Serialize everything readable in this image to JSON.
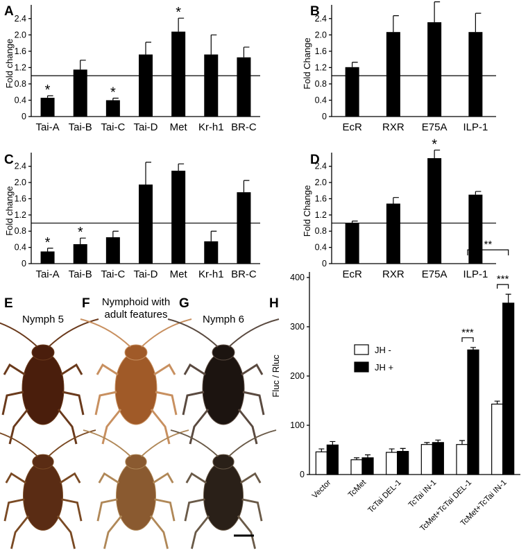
{
  "chart_data": [
    {
      "panel": "A",
      "type": "bar",
      "ylabel": "Fold change",
      "categories": [
        "Tai-A",
        "Tai-B",
        "Tai-C",
        "Tai-D",
        "Met",
        "Kr-h1",
        "BR-C"
      ],
      "values": [
        0.46,
        1.15,
        0.4,
        1.52,
        2.08,
        1.52,
        1.45
      ],
      "errors": [
        0.05,
        0.23,
        0.05,
        0.3,
        0.33,
        0.48,
        0.25
      ],
      "significance": [
        "*",
        "",
        "*",
        "",
        "*",
        "",
        ""
      ],
      "ylim": [
        0,
        2.6
      ],
      "yticks": [
        "0",
        "0.4",
        "0.8",
        "1.2",
        "1.6",
        "2.0",
        "2.4"
      ],
      "reference_line": 1.0
    },
    {
      "panel": "B",
      "type": "bar",
      "ylabel": "Fold Change",
      "categories": [
        "EcR",
        "RXR",
        "E75A",
        "ILP-1"
      ],
      "values": [
        1.21,
        2.07,
        2.31,
        2.07
      ],
      "errors": [
        0.12,
        0.4,
        0.5,
        0.46
      ],
      "significance": [
        "",
        "",
        "",
        ""
      ],
      "ylim": [
        0,
        2.6
      ],
      "yticks": [
        "0",
        "0.4",
        "0.8",
        "1.2",
        "1.6",
        "2.0",
        "2.4"
      ],
      "reference_line": 1.0
    },
    {
      "panel": "C",
      "type": "bar",
      "ylabel": "Fold change",
      "categories": [
        "Tai-A",
        "Tai-B",
        "Tai-C",
        "Tai-D",
        "Met",
        "Kr-h1",
        "BR-C"
      ],
      "values": [
        0.3,
        0.48,
        0.65,
        1.95,
        2.29,
        0.55,
        1.76
      ],
      "errors": [
        0.08,
        0.15,
        0.15,
        0.55,
        0.17,
        0.25,
        0.29
      ],
      "significance": [
        "*",
        "*",
        "",
        "",
        "",
        "",
        ""
      ],
      "ylim": [
        0,
        2.6
      ],
      "yticks": [
        "0",
        "0.4",
        "0.8",
        "1.2",
        "1.6",
        "2.0",
        "2.4"
      ],
      "reference_line": 1.0
    },
    {
      "panel": "D",
      "type": "bar",
      "ylabel": "Fold Change",
      "categories": [
        "EcR",
        "RXR",
        "E75A",
        "ILP-1"
      ],
      "values": [
        1.0,
        1.48,
        2.6,
        1.7
      ],
      "errors": [
        0.05,
        0.15,
        0.2,
        0.08
      ],
      "significance": [
        "",
        "",
        "*",
        ""
      ],
      "ylim": [
        0,
        2.6
      ],
      "yticks": [
        "0",
        "0.4",
        "0.8",
        "1.2",
        "1.6",
        "2.0",
        "2.4"
      ],
      "reference_line": 1.0
    },
    {
      "panel": "H",
      "type": "bar",
      "ylabel": "Fluc / Rluc",
      "categories": [
        "Vector",
        "TcMet",
        "TcTai DEL-1",
        "TcTai IN-1",
        "TcMet+TcTai DEL-1",
        "TcMet+TcTai IN-1"
      ],
      "series": [
        {
          "name": "JH -",
          "values": [
            46,
            30,
            45,
            61,
            61,
            143
          ],
          "errors": [
            6,
            4,
            7,
            4,
            8,
            6
          ]
        },
        {
          "name": "JH +",
          "values": [
            60,
            34,
            47,
            65,
            253,
            348
          ],
          "errors": [
            7,
            6,
            6,
            5,
            5,
            18
          ]
        }
      ],
      "ylim": [
        0,
        400
      ],
      "yticks": [
        "0",
        "100",
        "200",
        "300",
        "400"
      ],
      "legend": "top-left",
      "comparisons": [
        {
          "label": "***",
          "level": "within",
          "group": 4
        },
        {
          "label": "***",
          "level": "within",
          "group": 5
        },
        {
          "label": "**",
          "level": "across",
          "from_group": 4,
          "to_group": 5
        }
      ]
    }
  ],
  "photos": {
    "E": {
      "letter": "E",
      "title": "Nymph 5"
    },
    "F": {
      "letter": "F",
      "title_lines": [
        "Nymphoid with",
        "adult features"
      ]
    },
    "G": {
      "letter": "G",
      "title": "Nymph 6"
    }
  },
  "colors": {
    "bar": "#000000",
    "jh_minus": "#ffffff",
    "jh_plus": "#000000",
    "cockroach_e": "#4a1e0c",
    "cockroach_f": "#a05a28",
    "cockroach_g": "#1c1410"
  }
}
